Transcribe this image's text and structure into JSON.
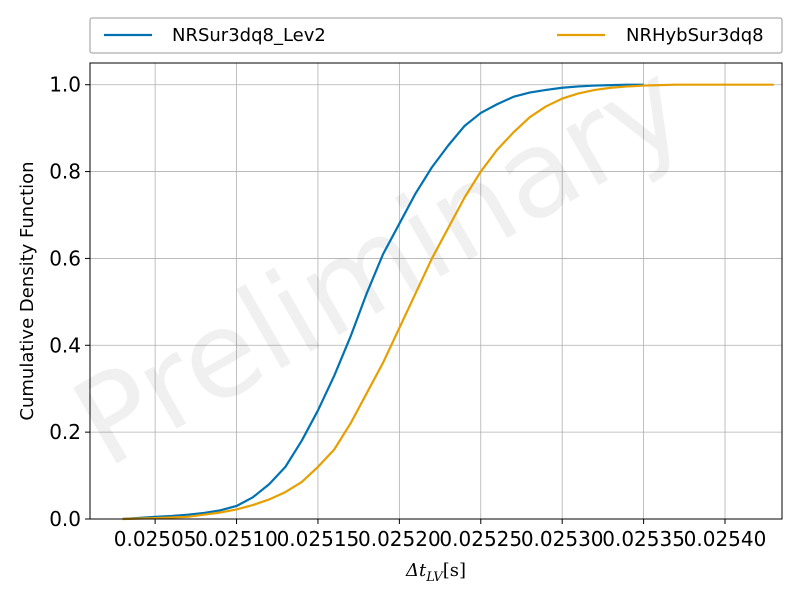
{
  "chart_data": {
    "type": "line",
    "title": "",
    "xlabel": "Δt_LV[s]",
    "ylabel": "Cumulative Density Function",
    "watermark": "Preliminary",
    "xlim": [
      0.02501,
      0.025435
    ],
    "ylim": [
      0,
      1.05
    ],
    "x_ticks": [
      0.02505,
      0.0251,
      0.02515,
      0.0252,
      0.02525,
      0.0253,
      0.02535,
      0.0254
    ],
    "x_tick_labels": [
      "0.02505",
      "0.02510",
      "0.02515",
      "0.02520",
      "0.02525",
      "0.02530",
      "0.02535",
      "0.02540"
    ],
    "y_ticks": [
      0.0,
      0.2,
      0.4,
      0.6,
      0.8,
      1.0
    ],
    "y_tick_labels": [
      "0.0",
      "0.2",
      "0.4",
      "0.6",
      "0.8",
      "1.0"
    ],
    "grid": true,
    "legend_position": "top, above plot, 2 columns",
    "series": [
      {
        "name": "NRSur3dq8_Lev2",
        "color": "#0072b2",
        "x": [
          0.02503,
          0.02505,
          0.02506,
          0.02507,
          0.02508,
          0.02509,
          0.0251,
          0.02511,
          0.02512,
          0.02513,
          0.02514,
          0.02515,
          0.02516,
          0.02517,
          0.02518,
          0.02519,
          0.0252,
          0.02521,
          0.02522,
          0.02523,
          0.02524,
          0.02525,
          0.02526,
          0.02527,
          0.02528,
          0.02529,
          0.0253,
          0.02531,
          0.02532,
          0.02533,
          0.02534,
          0.02535
        ],
        "y": [
          0.0,
          0.005,
          0.007,
          0.01,
          0.014,
          0.02,
          0.03,
          0.05,
          0.08,
          0.12,
          0.18,
          0.25,
          0.33,
          0.42,
          0.52,
          0.61,
          0.68,
          0.75,
          0.81,
          0.86,
          0.905,
          0.935,
          0.955,
          0.972,
          0.982,
          0.988,
          0.993,
          0.996,
          0.998,
          0.999,
          1.0,
          1.0
        ]
      },
      {
        "name": "NRHybSur3dq8",
        "color": "#e69f00",
        "x": [
          0.02503,
          0.02505,
          0.02507,
          0.02508,
          0.02509,
          0.0251,
          0.02511,
          0.02512,
          0.02513,
          0.02514,
          0.02515,
          0.02516,
          0.02517,
          0.02518,
          0.02519,
          0.0252,
          0.02521,
          0.02522,
          0.02523,
          0.02524,
          0.02525,
          0.02526,
          0.02527,
          0.02528,
          0.02529,
          0.0253,
          0.02531,
          0.02532,
          0.02533,
          0.02534,
          0.02535,
          0.02536,
          0.02537,
          0.02538,
          0.02539,
          0.0254,
          0.02541,
          0.02542,
          0.02543
        ],
        "y": [
          0.0,
          0.002,
          0.005,
          0.01,
          0.015,
          0.022,
          0.032,
          0.045,
          0.062,
          0.085,
          0.12,
          0.16,
          0.22,
          0.29,
          0.36,
          0.44,
          0.52,
          0.6,
          0.67,
          0.74,
          0.8,
          0.85,
          0.89,
          0.925,
          0.95,
          0.968,
          0.98,
          0.988,
          0.993,
          0.996,
          0.998,
          0.999,
          1.0,
          1.0,
          1.0,
          1.0,
          1.0,
          1.0,
          1.0
        ]
      }
    ]
  }
}
